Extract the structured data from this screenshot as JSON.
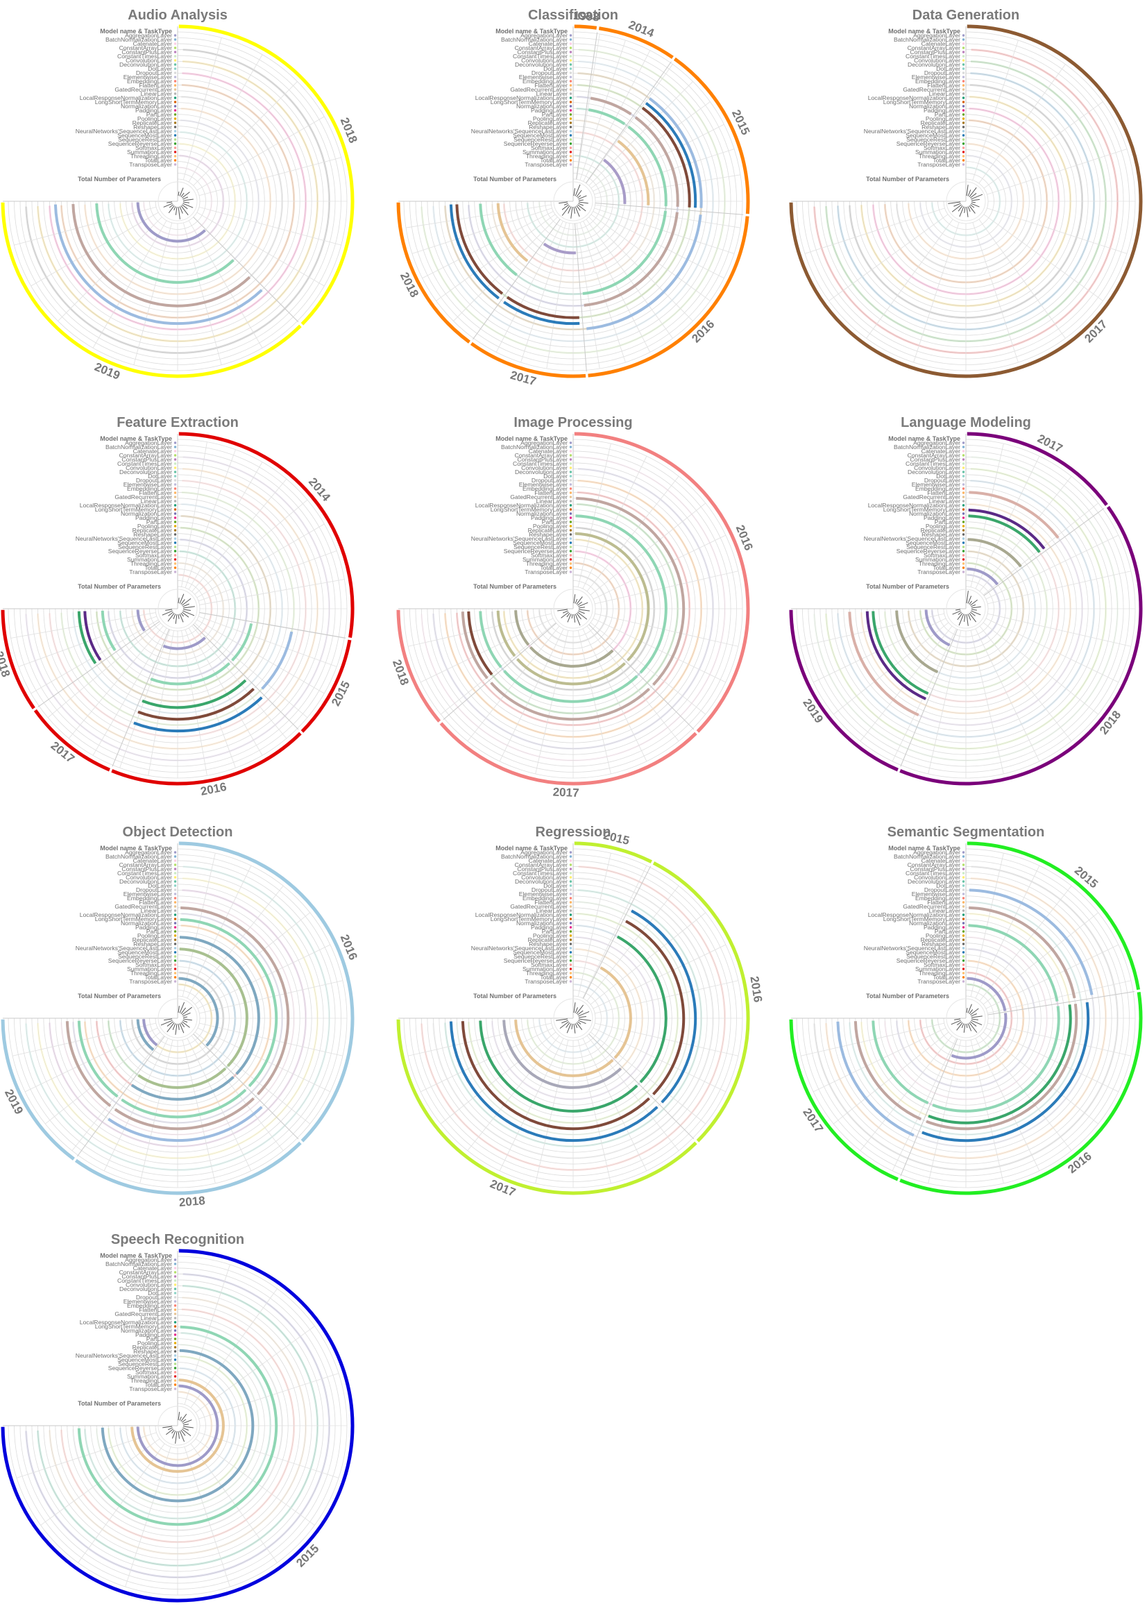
{
  "figure": {
    "layer_types": [
      "Model name & TaskType",
      "AggregationLayer",
      "BatchNormalizationLayer",
      "CatenateLayer",
      "ConstantArrayLayer",
      "ConstantPlusLayer",
      "ConstantTimesLayer",
      "ConvolutionLayer",
      "DeconvolutionLayer",
      "DotLayer",
      "DropoutLayer",
      "ElementwiseLayer",
      "EmbeddingLayer",
      "FlattenLayer",
      "GatedRecurrentLayer",
      "LinearLayer",
      "LocalResponseNormalizationLayer",
      "LongShortTermMemoryLayer",
      "NormalizationLayer",
      "PaddingLayer",
      "PartLayer",
      "PoolingLayer",
      "ReplicateLayer",
      "ReshapeLayer",
      "NeuralNetworks'SequenceLastLayer",
      "SequenceMostLayer",
      "SequenceRestLayer",
      "SequenceReverseLayer",
      "SoftmaxLayer",
      "SummationLayer",
      "ThreadingLayer",
      "TotalLayer",
      "TransposeLayer"
    ],
    "params_label": "Total Number of Parameters",
    "layer_colors": [
      "#9e9ac8",
      "#80b1d3",
      "#fccde5",
      "#b3de69",
      "#bc80bd",
      "#ccebc5",
      "#ffed6f",
      "#66c2a5",
      "#8dd3c7",
      "#d9d9d9",
      "#bebada",
      "#fb8072",
      "#fdb462",
      "#e5c494",
      "#b3b3b3",
      "#1b9e77",
      "#d95f02",
      "#7570b3",
      "#e7298a",
      "#66a61e",
      "#e6ab02",
      "#a6761d",
      "#666666",
      "#a6cee3",
      "#1f78b4",
      "#b2df8a",
      "#33a02c",
      "#fb9a99",
      "#e31a1c",
      "#fdbf6f",
      "#ff7f00",
      "#cab2d6"
    ]
  },
  "chart_data": [
    {
      "type": "radial",
      "title": "Audio Analysis",
      "accent": "#ffff00",
      "years": [
        {
          "label": "2018",
          "share": 0.5
        },
        {
          "label": "2019",
          "share": 0.5
        }
      ],
      "rings": [
        {
          "index": 3,
          "color": "#9e9ac8",
          "years": [
            1
          ]
        },
        {
          "index": 10,
          "color": "#8fd6b4",
          "years": [
            1
          ]
        },
        {
          "index": 14,
          "color": "#c0a6a0",
          "years": [
            1
          ]
        },
        {
          "index": 17,
          "color": "#9cbbe0",
          "years": [
            1
          ]
        }
      ]
    },
    {
      "type": "radial",
      "title": "Classification",
      "accent": "#ff8000",
      "years": [
        {
          "label": "1998",
          "share": 0.03
        },
        {
          "label": "2014",
          "share": 0.1
        },
        {
          "label": "2015",
          "share": 0.22
        },
        {
          "label": "2016",
          "share": 0.3
        },
        {
          "label": "2017",
          "share": 0.15
        },
        {
          "label": "2018",
          "share": 0.2
        }
      ],
      "rings": [
        {
          "index": 5,
          "color": "#a89cc8",
          "years": [
            2,
            4
          ]
        },
        {
          "index": 9,
          "color": "#e5c494",
          "years": [
            2,
            5
          ]
        },
        {
          "index": 12,
          "color": "#8fd6b4",
          "years": [
            1,
            2,
            3,
            5
          ]
        },
        {
          "index": 14,
          "color": "#c0a6a0",
          "years": [
            1,
            2,
            3
          ]
        },
        {
          "index": 16,
          "color": "#7f4a3a",
          "years": [
            2,
            4,
            5
          ]
        },
        {
          "index": 17,
          "color": "#2b7bb9",
          "years": [
            2,
            4,
            5
          ]
        },
        {
          "index": 18,
          "color": "#9cbbe0",
          "years": [
            2,
            3
          ]
        }
      ]
    },
    {
      "type": "radial",
      "title": "Data Generation",
      "accent": "#8c5a32",
      "years": [
        {
          "label": "2017",
          "share": 1.0
        }
      ],
      "rings": []
    },
    {
      "type": "radial",
      "title": "Feature Extraction",
      "accent": "#e00000",
      "years": [
        {
          "label": "2014",
          "share": 0.37
        },
        {
          "label": "2015",
          "share": 0.13
        },
        {
          "label": "2016",
          "share": 0.25
        },
        {
          "label": "2017",
          "share": 0.12
        },
        {
          "label": "2018",
          "share": 0.13
        }
      ],
      "rings": [
        {
          "index": 3,
          "color": "#9e9ac8",
          "years": [
            2,
            4
          ]
        },
        {
          "index": 9,
          "color": "#8fd6b4",
          "years": [
            1,
            2,
            4
          ]
        },
        {
          "index": 12,
          "color": "#5b2a86",
          "years": [
            4
          ]
        },
        {
          "index": 13,
          "color": "#3aa66b",
          "years": [
            2,
            4
          ]
        },
        {
          "index": 15,
          "color": "#7f4a3a",
          "years": [
            2
          ]
        },
        {
          "index": 17,
          "color": "#2b7bb9",
          "years": [
            2
          ]
        },
        {
          "index": 16,
          "color": "#9cbbe0",
          "years": [
            1
          ]
        }
      ]
    },
    {
      "type": "radial",
      "title": "Image Processing",
      "accent": "#f28080",
      "years": [
        {
          "label": "2016",
          "share": 0.5
        },
        {
          "label": "2017",
          "share": 0.35
        },
        {
          "label": "2018",
          "share": 0.15
        }
      ],
      "rings": [
        {
          "index": 6,
          "color": "#a8a890",
          "years": [
            1,
            2
          ]
        },
        {
          "index": 9,
          "color": "#bcbc90",
          "years": [
            0,
            1,
            2
          ]
        },
        {
          "index": 12,
          "color": "#8fd6b4",
          "years": [
            0,
            1,
            2
          ]
        },
        {
          "index": 14,
          "color": "#7f4a3a",
          "years": [
            2
          ]
        },
        {
          "index": 15,
          "color": "#c0a6a0",
          "years": [
            0,
            1,
            2
          ]
        }
      ]
    },
    {
      "type": "radial",
      "title": "Language Modeling",
      "accent": "#7a007a",
      "years": [
        {
          "label": "2017",
          "share": 0.2
        },
        {
          "label": "2018",
          "share": 0.55
        },
        {
          "label": "2019",
          "share": 0.25
        }
      ],
      "rings": [
        {
          "index": 3,
          "color": "#9e9ac8",
          "years": [
            0,
            2
          ]
        },
        {
          "index": 8,
          "color": "#a8a890",
          "years": [
            0,
            2
          ]
        },
        {
          "index": 12,
          "color": "#3aa66b",
          "years": [
            0,
            2
          ]
        },
        {
          "index": 13,
          "color": "#5b2a86",
          "years": [
            0,
            2
          ]
        },
        {
          "index": 16,
          "color": "#d9b0a8",
          "years": [
            0,
            2
          ]
        }
      ]
    },
    {
      "type": "radial",
      "title": "Object Detection",
      "accent": "#9ecae1",
      "years": [
        {
          "label": "2016",
          "share": 0.5
        },
        {
          "label": "2018",
          "share": 0.3
        },
        {
          "label": "2019",
          "share": 0.2
        }
      ],
      "rings": [
        {
          "index": 2,
          "color": "#9e9ac8",
          "years": [
            2
          ]
        },
        {
          "index": 3,
          "color": "#7fa8c0",
          "years": [
            0,
            2
          ]
        },
        {
          "index": 8,
          "color": "#a8c090",
          "years": [
            0,
            1
          ]
        },
        {
          "index": 10,
          "color": "#7fa8c0",
          "years": [
            0,
            1
          ]
        },
        {
          "index": 13,
          "color": "#8fd6b4",
          "years": [
            0,
            1,
            2
          ]
        },
        {
          "index": 15,
          "color": "#c0a6a0",
          "years": [
            0,
            1,
            2
          ]
        },
        {
          "index": 17,
          "color": "#9cbbe0",
          "years": [
            1
          ]
        }
      ]
    },
    {
      "type": "radial",
      "title": "Regression",
      "accent": "#c0f030",
      "years": [
        {
          "label": "2015",
          "share": 0.1
        },
        {
          "label": "2016",
          "share": 0.4
        },
        {
          "label": "2017",
          "share": 0.5
        }
      ],
      "rings": [
        {
          "index": 6,
          "color": "#e5c494",
          "years": [
            1,
            2
          ]
        },
        {
          "index": 8,
          "color": "#a8a8b8",
          "years": [
            2
          ]
        },
        {
          "index": 12,
          "color": "#3aa66b",
          "years": [
            1,
            2
          ]
        },
        {
          "index": 15,
          "color": "#7f4a3a",
          "years": [
            1,
            2
          ]
        },
        {
          "index": 17,
          "color": "#2b7bb9",
          "years": [
            1,
            2
          ]
        }
      ]
    },
    {
      "type": "radial",
      "title": "Semantic Segmentation",
      "accent": "#22ee22",
      "years": [
        {
          "label": "2015",
          "share": 0.3
        },
        {
          "label": "2016",
          "share": 0.45
        },
        {
          "label": "2017",
          "share": 0.25
        }
      ],
      "rings": [
        {
          "index": 3,
          "color": "#9e9ac8",
          "years": [
            0,
            1
          ]
        },
        {
          "index": 12,
          "color": "#8fd6b4",
          "years": [
            0,
            1,
            2
          ]
        },
        {
          "index": 14,
          "color": "#3aa66b",
          "years": [
            1
          ]
        },
        {
          "index": 15,
          "color": "#c0a6a0",
          "years": [
            0,
            1,
            2
          ]
        },
        {
          "index": 17,
          "color": "#2b7bb9",
          "years": [
            1
          ]
        },
        {
          "index": 18,
          "color": "#9cbbe0",
          "years": [
            0,
            2
          ]
        }
      ]
    },
    {
      "type": "radial",
      "title": "Speech Recognition",
      "accent": "#0000dd",
      "years": [
        {
          "label": "2015",
          "share": 1.0
        }
      ],
      "rings": [
        {
          "index": 3,
          "color": "#9e9ac8",
          "years": [
            0
          ]
        },
        {
          "index": 4,
          "color": "#e5c494",
          "years": [
            0
          ]
        },
        {
          "index": 9,
          "color": "#7fa8c0",
          "years": [
            0
          ]
        },
        {
          "index": 13,
          "color": "#8fd6b4",
          "years": [
            0
          ]
        }
      ]
    }
  ]
}
